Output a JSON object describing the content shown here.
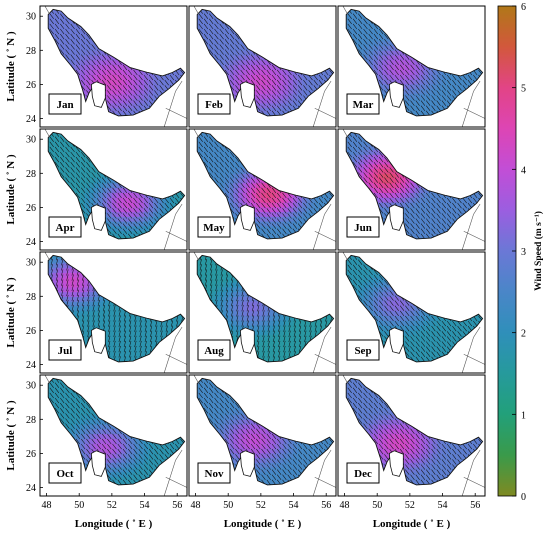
{
  "chart_data": {
    "type": "heatmap",
    "panels": [
      {
        "month": "Jan",
        "mean_speed": 3.8,
        "peak_speed": 4.3,
        "low_speed": 3.0
      },
      {
        "month": "Feb",
        "mean_speed": 3.7,
        "peak_speed": 4.2,
        "low_speed": 2.9
      },
      {
        "month": "Mar",
        "mean_speed": 3.1,
        "peak_speed": 3.8,
        "low_speed": 2.4
      },
      {
        "month": "Apr",
        "mean_speed": 3.4,
        "peak_speed": 4.1,
        "low_speed": 1.7
      },
      {
        "month": "May",
        "mean_speed": 4.0,
        "peak_speed": 5.0,
        "low_speed": 2.4
      },
      {
        "month": "Jun",
        "mean_speed": 4.3,
        "peak_speed": 5.2,
        "low_speed": 2.6
      },
      {
        "month": "Jul",
        "mean_speed": 3.2,
        "peak_speed": 4.2,
        "low_speed": 1.8
      },
      {
        "month": "Aug",
        "mean_speed": 2.5,
        "peak_speed": 3.2,
        "low_speed": 1.6
      },
      {
        "month": "Sep",
        "mean_speed": 2.6,
        "peak_speed": 3.3,
        "low_speed": 1.8
      },
      {
        "month": "Oct",
        "mean_speed": 3.0,
        "peak_speed": 3.8,
        "low_speed": 1.8
      },
      {
        "month": "Nov",
        "mean_speed": 3.5,
        "peak_speed": 4.0,
        "low_speed": 2.4
      },
      {
        "month": "Dec",
        "mean_speed": 3.8,
        "peak_speed": 4.3,
        "low_speed": 2.8
      }
    ],
    "x_ticks": [
      "48",
      "50",
      "52",
      "54",
      "56"
    ],
    "y_ticks": [
      "24",
      "26",
      "28",
      "30"
    ],
    "xlabel": "Longitude ( ˚ E )",
    "ylabel": "Latitude ( ˚ N )",
    "xlim": [
      47.6,
      56.6
    ],
    "ylim": [
      23.5,
      30.6
    ],
    "colorbar": {
      "label": "Wind Speed (m s⁻¹)",
      "ticks": [
        "0",
        "1",
        "2",
        "3",
        "4",
        "5",
        "6"
      ],
      "range": [
        0,
        6
      ]
    },
    "colorscale": [
      [
        0,
        "#7f8a22"
      ],
      [
        0.5,
        "#3a9a4a"
      ],
      [
        1,
        "#22a07a"
      ],
      [
        1.5,
        "#269a9c"
      ],
      [
        2,
        "#2f8fba"
      ],
      [
        2.5,
        "#4a86c8"
      ],
      [
        3,
        "#6b78d6"
      ],
      [
        3.5,
        "#9b5ee0"
      ],
      [
        4,
        "#c24ed6"
      ],
      [
        4.5,
        "#dd45b4"
      ],
      [
        5,
        "#e24486"
      ],
      [
        5.5,
        "#d2583c"
      ],
      [
        6,
        "#b07818"
      ]
    ],
    "grid": false,
    "legend": "colorbar-right"
  }
}
